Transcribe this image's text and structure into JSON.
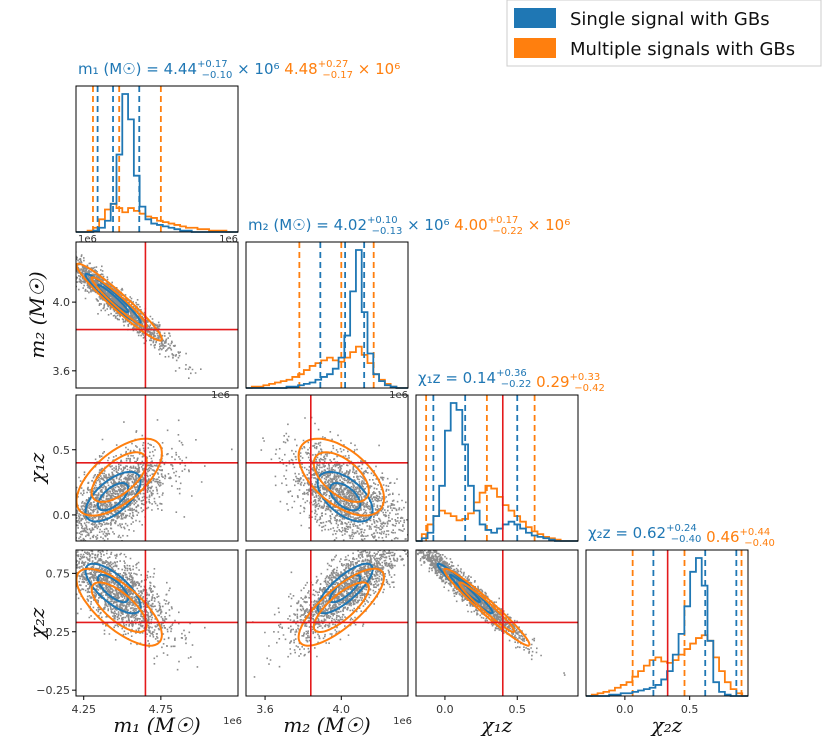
{
  "colors": {
    "single": "#1f77b4",
    "multi": "#ff7f0e",
    "truth": "#e41a1c",
    "samples": "#808080"
  },
  "legend": {
    "items": [
      "Single signal with GBs",
      "Multiple signals with GBs"
    ]
  },
  "chart_data": {
    "type": "corner",
    "parameters": [
      {
        "key": "m1",
        "axis_label": "m₁ (M☉)",
        "range": [
          4.2,
          5.25
        ],
        "ticks": [
          "4.25",
          "4.75"
        ],
        "exponent_label": "1e6",
        "truth": 4.65,
        "single": {
          "median": 4.44,
          "plus": "0.17",
          "minus": "0.10",
          "q": [
            4.34,
            4.44,
            4.61
          ]
        },
        "multi": {
          "median": 4.48,
          "plus": "0.27",
          "minus": "0.17",
          "q": [
            4.31,
            4.48,
            4.75
          ]
        },
        "title_single": "m₁ (M☉) = 4.44",
        "title_multi": "4.48",
        "title_sup_single": "+0.17",
        "title_sub_single": "−0.10",
        "title_sup_multi": "+0.27",
        "title_sub_multi": "−0.17",
        "title_pow": "× 10⁶"
      },
      {
        "key": "m2",
        "axis_label": "m₂ (M☉)",
        "range": [
          3.5,
          4.35
        ],
        "ticks": [
          "3.6",
          "4.0"
        ],
        "exponent_label": "1e6",
        "truth": 3.84,
        "single": {
          "median": 4.02,
          "plus": "0.10",
          "minus": "0.13",
          "q": [
            3.89,
            4.02,
            4.12
          ]
        },
        "multi": {
          "median": 4.0,
          "plus": "0.17",
          "minus": "0.22",
          "q": [
            3.78,
            4.0,
            4.17
          ]
        },
        "title_single": "m₂ (M☉) = 4.02",
        "title_multi": "4.00",
        "title_sup_single": "+0.10",
        "title_sub_single": "−0.13",
        "title_sup_multi": "+0.17",
        "title_sub_multi": "−0.22",
        "title_pow": "× 10⁶"
      },
      {
        "key": "chi1z",
        "axis_label": "χ₁z",
        "range": [
          -0.2,
          0.92
        ],
        "ticks": [
          "0.0",
          "0.5"
        ],
        "truth": 0.4,
        "single": {
          "median": 0.14,
          "plus": "0.36",
          "minus": "0.22",
          "q": [
            -0.08,
            0.14,
            0.5
          ]
        },
        "multi": {
          "median": 0.29,
          "plus": "0.33",
          "minus": "0.42",
          "q": [
            -0.13,
            0.29,
            0.62
          ]
        },
        "title_single": "χ₁z = 0.14",
        "title_multi": "0.29",
        "title_sup_single": "+0.36",
        "title_sub_single": "−0.22",
        "title_sup_multi": "+0.33",
        "title_sub_multi": "−0.42",
        "title_pow": ""
      },
      {
        "key": "chi2z",
        "axis_label": "χ₂z",
        "range": [
          -0.3,
          0.95
        ],
        "ticks": [
          "−0.25",
          "0.25",
          "0.75"
        ],
        "xticks": [
          "0.0",
          "0.5"
        ],
        "truth": 0.33,
        "single": {
          "median": 0.62,
          "plus": "0.24",
          "minus": "0.40",
          "q": [
            0.22,
            0.62,
            0.86
          ]
        },
        "multi": {
          "median": 0.46,
          "plus": "0.44",
          "minus": "0.40",
          "q": [
            0.06,
            0.46,
            0.9
          ]
        },
        "title_single": "χ₂z = 0.62",
        "title_multi": "0.46",
        "title_sup_single": "+0.24",
        "title_sub_single": "−0.40",
        "title_sup_multi": "+0.44",
        "title_sub_multi": "−0.40",
        "title_pow": ""
      }
    ],
    "histograms": [
      {
        "param": "m1",
        "single": [
          0,
          0,
          0,
          1,
          3,
          8,
          20,
          55,
          98,
          80,
          40,
          18,
          9,
          6,
          5,
          4,
          3,
          2,
          1,
          1,
          0,
          0,
          0,
          0,
          0,
          0,
          0,
          0
        ],
        "multi": [
          0,
          0,
          1,
          3,
          9,
          16,
          20,
          17,
          14,
          17,
          15,
          13,
          11,
          10,
          8,
          7,
          6,
          5,
          4,
          3,
          3,
          2,
          2,
          1,
          1,
          1,
          0,
          0
        ]
      },
      {
        "param": "m2",
        "single": [
          0,
          0,
          0,
          0,
          0,
          0,
          0,
          1,
          1,
          2,
          3,
          4,
          6,
          8,
          10,
          14,
          22,
          38,
          70,
          100,
          55,
          25,
          10,
          5,
          2,
          1,
          0,
          0
        ],
        "multi": [
          0,
          1,
          1,
          2,
          3,
          4,
          5,
          6,
          8,
          10,
          13,
          16,
          18,
          20,
          22,
          20,
          19,
          22,
          26,
          30,
          24,
          18,
          10,
          6,
          3,
          1,
          0,
          0
        ]
      },
      {
        "param": "chi1z",
        "single": [
          0,
          2,
          6,
          18,
          40,
          80,
          100,
          95,
          70,
          40,
          22,
          12,
          8,
          6,
          9,
          12,
          14,
          12,
          9,
          6,
          4,
          3,
          2,
          1,
          0,
          0,
          0,
          0
        ],
        "multi": [
          0,
          5,
          12,
          18,
          22,
          20,
          18,
          15,
          16,
          20,
          28,
          35,
          40,
          38,
          32,
          26,
          22,
          18,
          14,
          10,
          7,
          5,
          3,
          2,
          1,
          0,
          0,
          0
        ]
      },
      {
        "param": "chi2z",
        "single": [
          0,
          0,
          0,
          0,
          1,
          1,
          2,
          2,
          3,
          4,
          5,
          6,
          8,
          12,
          18,
          30,
          45,
          65,
          90,
          100,
          80,
          40,
          10,
          3,
          1,
          0,
          0,
          0
        ],
        "multi": [
          0,
          1,
          2,
          3,
          4,
          6,
          8,
          10,
          14,
          18,
          22,
          26,
          28,
          25,
          24,
          26,
          30,
          34,
          38,
          42,
          44,
          40,
          28,
          18,
          10,
          5,
          2,
          0
        ]
      }
    ],
    "pairs": [
      {
        "x": "m1",
        "y": "m2",
        "corr": -0.96
      },
      {
        "x": "m1",
        "y": "chi1z",
        "corr": 0.62
      },
      {
        "x": "m2",
        "y": "chi1z",
        "corr": -0.55
      },
      {
        "x": "m1",
        "y": "chi2z",
        "corr": -0.72
      },
      {
        "x": "m2",
        "y": "chi2z",
        "corr": 0.78
      },
      {
        "x": "chi1z",
        "y": "chi2z",
        "corr": -0.97
      }
    ]
  }
}
